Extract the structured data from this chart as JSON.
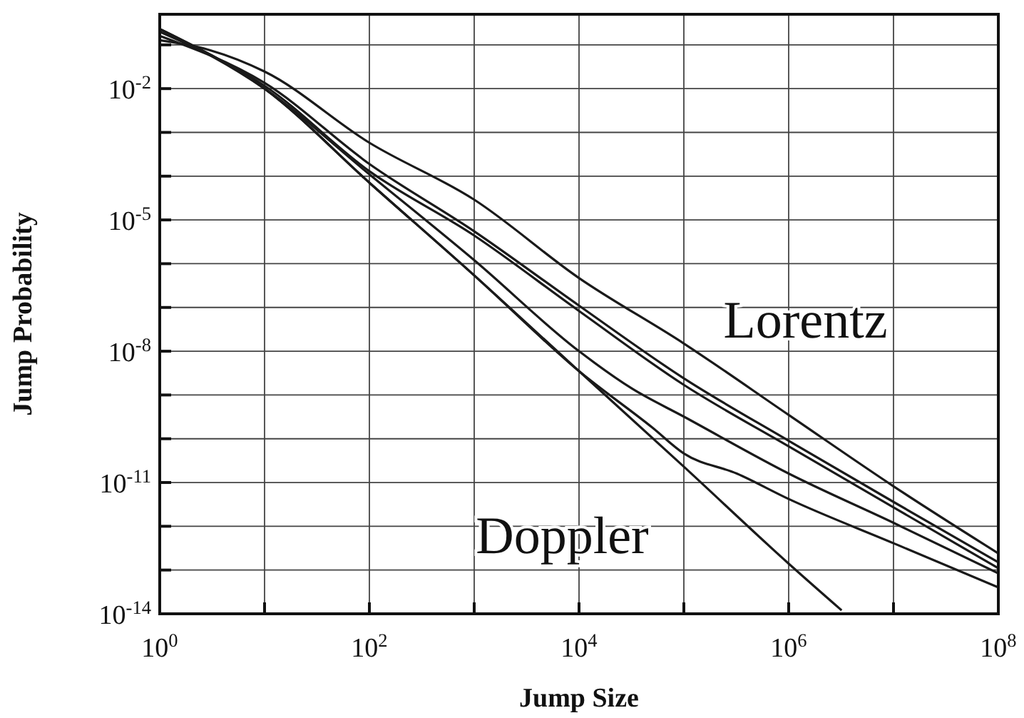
{
  "chart_data": {
    "type": "line",
    "xlabel": "Jump Size",
    "ylabel": "Jump Probability",
    "log": "xy",
    "grid": true,
    "marker": "none",
    "line_style": "solid",
    "xlim": [
      1,
      100000000
    ],
    "ylim": [
      1e-14,
      0.5
    ],
    "xticks": [
      {
        "value": 1,
        "label": "10$^{0}$"
      },
      {
        "value": 10,
        "label": null
      },
      {
        "value": 100,
        "label": "10$^{2}$"
      },
      {
        "value": 1000,
        "label": null
      },
      {
        "value": 10000,
        "label": "10$^{4}$"
      },
      {
        "value": 100000,
        "label": null
      },
      {
        "value": 1000000,
        "label": "10$^{6}$"
      },
      {
        "value": 10000000,
        "label": null
      },
      {
        "value": 100000000,
        "label": "10$^{8}$"
      }
    ],
    "yticks": [
      {
        "value": 1e-14,
        "label": "10$^{-14}$"
      },
      {
        "value": 1e-13,
        "label": null
      },
      {
        "value": 1e-12,
        "label": null
      },
      {
        "value": 1e-11,
        "label": "10$^{-11}$"
      },
      {
        "value": 1e-10,
        "label": null
      },
      {
        "value": 1e-09,
        "label": null
      },
      {
        "value": 1e-08,
        "label": "10$^{-8}$"
      },
      {
        "value": 1e-07,
        "label": null
      },
      {
        "value": 1e-06,
        "label": null
      },
      {
        "value": 1e-05,
        "label": "10$^{-5}$"
      },
      {
        "value": 0.0001,
        "label": null
      },
      {
        "value": 0.001,
        "label": null
      },
      {
        "value": 0.01,
        "label": "10$^{-2}$"
      },
      {
        "value": 0.1,
        "label": null
      }
    ],
    "series": [
      {
        "color": "#1a1a1a",
        "x": [
          1,
          3,
          10,
          100,
          1000,
          10000,
          100000,
          1000000,
          10000000,
          100000000
        ],
        "values": [
          0.128,
          0.076,
          0.0246,
          0.00058,
          2.9e-05,
          4.7e-07,
          1.5e-08,
          3.5e-10,
          8.2e-12,
          2.4e-13
        ]
      },
      {
        "color": "#1a1a1a",
        "x": [
          1,
          10,
          100,
          1000,
          10000,
          100000,
          1000000,
          10000000,
          100000000
        ],
        "values": [
          0.16,
          0.0135,
          0.00019,
          5.5e-06,
          1.1e-07,
          2.4e-09,
          9e-11,
          3.6e-12,
          1.5e-13
        ]
      },
      {
        "color": "#1a1a1a",
        "x": [
          1,
          10,
          100,
          1000,
          10000,
          100000,
          1000000,
          10000000,
          100000000
        ],
        "values": [
          0.2,
          0.0116,
          0.00013,
          4.4e-06,
          8.3e-08,
          1.7e-09,
          6.7e-11,
          2.7e-12,
          1.1e-13
        ]
      },
      {
        "color": "#1a1a1a",
        "x": [
          1,
          10,
          100,
          1000,
          10000,
          32000,
          100000,
          1000000,
          10000000,
          100000000
        ],
        "values": [
          0.23,
          0.01,
          0.00011,
          1.2e-06,
          1e-08,
          1.4e-09,
          3.2e-10,
          1.6e-11,
          1.2e-12,
          8.4e-14
        ]
      },
      {
        "color": "#1a1a1a",
        "x": [
          1,
          10,
          100,
          1000,
          10000,
          50000,
          100000,
          320000,
          1000000,
          10000000,
          100000000
        ],
        "values": [
          0.23,
          0.01,
          7.1e-05,
          5.4e-07,
          3.5e-09,
          1.8e-10,
          4.6e-11,
          1.6e-11,
          4.2e-12,
          4.1e-13,
          4e-14
        ]
      },
      {
        "color": "#1a1a1a",
        "x": [
          1,
          10,
          100,
          1000,
          10000,
          100000,
          1000000,
          3200000
        ],
        "values": [
          0.23,
          0.01,
          7.1e-05,
          5.4e-07,
          3.5e-09,
          2.3e-11,
          1.4e-13,
          1.2e-14
        ]
      }
    ],
    "annotations": [
      "Lorentz",
      "Doppler"
    ]
  }
}
